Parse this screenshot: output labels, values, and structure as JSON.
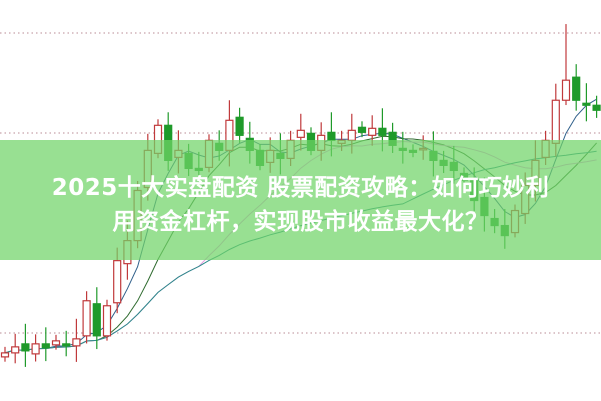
{
  "title": {
    "line1": "2025十大实盘配资 股票配资攻略：如何巧妙利",
    "line2": "用资金杠杆，实现股市收益最大化？"
  },
  "colors": {
    "banner": "#70d468",
    "up_candle": "#c0393b",
    "down_candle": "#1f9a2a",
    "grid": "#c8a2aa",
    "ma_lines": [
      "#2f5f8a",
      "#2f6b2f",
      "#e59ce0",
      "#2a8a8a"
    ]
  },
  "candles": {
    "close": [
      4.8,
      5.4,
      5.0,
      5.7,
      5.3,
      6.0,
      5.5,
      6.2,
      10.0,
      6.5,
      9.5,
      14.0,
      16.0,
      21.0,
      25.0,
      27.5,
      24.0,
      25.0,
      23.2,
      23.0,
      26.0,
      25.0,
      28.0,
      26.5,
      25.0,
      23.5,
      25.0,
      24.2,
      26.0,
      27.0,
      25.0,
      26.5,
      26.0,
      26.0,
      27.0,
      26.8,
      27.2,
      26.5,
      25.5,
      25.0,
      24.8,
      25.2,
      24.0,
      23.5,
      23.0,
      22.0,
      20.0,
      18.5,
      17.5,
      16.5,
      19.0,
      21.5,
      24.0,
      26.0,
      30.0,
      32.0,
      30.0,
      29.5,
      29.0
    ],
    "price_range": [
      0,
      40
    ]
  }
}
